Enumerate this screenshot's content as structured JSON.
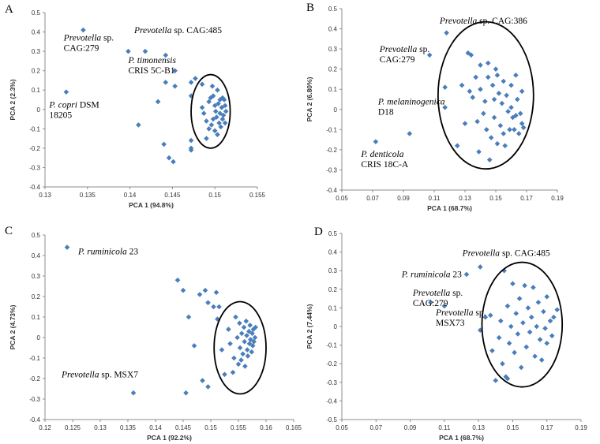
{
  "chart_data": [
    {
      "type": "scatter",
      "panel": "A",
      "xlabel": "PCA 1 (94.8%)",
      "ylabel": "PCA 2 (2.3%)",
      "xlim": [
        0.13,
        0.155
      ],
      "ylim": [
        -0.4,
        0.5
      ],
      "xticks": [
        0.13,
        0.135,
        0.14,
        0.145,
        0.15,
        0.155
      ],
      "xtick_labels": [
        "0.13",
        "0.135",
        "0.14",
        "0.145",
        "0.15",
        "0.155"
      ],
      "yticks": [
        -0.4,
        -0.3,
        -0.2,
        -0.1,
        0,
        0.1,
        0.2,
        0.3,
        0.4,
        0.5
      ],
      "ytick_labels": [
        "-0.4",
        "-0.3",
        "-0.2",
        "-0.1",
        "0",
        "0.1",
        "0.2",
        "0.3",
        "0.4",
        "0.5"
      ],
      "points": [
        [
          0.1345,
          0.41
        ],
        [
          0.1325,
          0.09
        ],
        [
          0.1398,
          0.3
        ],
        [
          0.1418,
          0.3
        ],
        [
          0.141,
          -0.08
        ],
        [
          0.1442,
          0.28
        ],
        [
          0.1442,
          0.14
        ],
        [
          0.1453,
          0.2
        ],
        [
          0.1453,
          0.12
        ],
        [
          0.1433,
          0.04
        ],
        [
          0.144,
          -0.18
        ],
        [
          0.1446,
          -0.25
        ],
        [
          0.1451,
          -0.27
        ],
        [
          0.1472,
          0.14
        ],
        [
          0.1472,
          0.07
        ],
        [
          0.1472,
          -0.16
        ],
        [
          0.1472,
          -0.2
        ],
        [
          0.1472,
          -0.21
        ],
        [
          0.1477,
          0.16
        ],
        [
          0.1485,
          0.13
        ],
        [
          0.1485,
          0.01
        ],
        [
          0.1487,
          -0.02
        ],
        [
          0.149,
          -0.06
        ],
        [
          0.149,
          -0.15
        ],
        [
          0.1493,
          0.04
        ],
        [
          0.1493,
          -0.1
        ],
        [
          0.1495,
          0.06
        ],
        [
          0.1496,
          -0.08
        ],
        [
          0.1497,
          0.12
        ],
        [
          0.1498,
          0.07
        ],
        [
          0.1498,
          -0.05
        ],
        [
          0.15,
          0.02
        ],
        [
          0.15,
          -0.11
        ],
        [
          0.1501,
          -0.01
        ],
        [
          0.1502,
          -0.04
        ],
        [
          0.1503,
          0.1
        ],
        [
          0.1503,
          -0.13
        ],
        [
          0.1504,
          0.03
        ],
        [
          0.1505,
          -0.07
        ],
        [
          0.1506,
          0.05
        ],
        [
          0.1506,
          -0.02
        ],
        [
          0.1507,
          -0.09
        ],
        [
          0.1508,
          0.01
        ],
        [
          0.1509,
          0.06
        ],
        [
          0.1509,
          -0.05
        ],
        [
          0.151,
          -0.03
        ],
        [
          0.1511,
          0.05
        ],
        [
          0.1512,
          -0.07
        ],
        [
          0.1512,
          0.02
        ],
        [
          0.1513,
          -0.01
        ]
      ],
      "ellipse": {
        "cx": 0.1495,
        "cy": -0.01,
        "rx": 0.0023,
        "ry": 0.19
      },
      "annotations": [
        {
          "lines": [
            [
              {
                "t": "Prevotella",
                "i": true
              },
              {
                "t": " sp.",
                "i": false
              }
            ],
            [
              {
                "t": "CAG:279",
                "i": false
              }
            ]
          ],
          "x": 0.1322,
          "y": 0.355
        },
        {
          "lines": [
            [
              {
                "t": "Prevotella",
                "i": true
              },
              {
                "t": " sp. CAG:485",
                "i": false
              }
            ]
          ],
          "x": 0.1405,
          "y": 0.395
        },
        {
          "lines": [
            [
              {
                "t": "P. timonensis",
                "i": true
              }
            ],
            [
              {
                "t": "CRIS 5C-B1",
                "i": false
              }
            ]
          ],
          "x": 0.1398,
          "y": 0.24
        },
        {
          "lines": [
            [
              {
                "t": "P. copri",
                "i": true
              },
              {
                "t": " DSM",
                "i": false
              }
            ],
            [
              {
                "t": "18205",
                "i": false
              }
            ]
          ],
          "x": 0.1305,
          "y": 0.01
        }
      ]
    },
    {
      "type": "scatter",
      "panel": "B",
      "xlabel": "PCA 1 (68.7%)",
      "ylabel": "PCA 2 (6.80%)",
      "xlim": [
        0.05,
        0.19
      ],
      "ylim": [
        -0.4,
        0.5
      ],
      "xticks": [
        0.05,
        0.07,
        0.09,
        0.11,
        0.13,
        0.15,
        0.17,
        0.19
      ],
      "xtick_labels": [
        "0.05",
        "0.07",
        "0.09",
        "0.11",
        "0.13",
        "0.15",
        "0.17",
        "0.19"
      ],
      "yticks": [
        -0.4,
        -0.3,
        -0.2,
        -0.1,
        0,
        0.1,
        0.2,
        0.3,
        0.4,
        0.5
      ],
      "ytick_labels": [
        "-0.4",
        "-0.3",
        "-0.2",
        "-0.1",
        "0",
        "0.1",
        "0.2",
        "0.3",
        "0.4",
        "0.5"
      ],
      "points": [
        [
          0.118,
          0.38
        ],
        [
          0.107,
          0.27
        ],
        [
          0.072,
          -0.16
        ],
        [
          0.094,
          -0.12
        ],
        [
          0.117,
          0.11
        ],
        [
          0.117,
          0.01
        ],
        [
          0.125,
          -0.18
        ],
        [
          0.128,
          0.12
        ],
        [
          0.132,
          0.28
        ],
        [
          0.134,
          0.27
        ],
        [
          0.133,
          0.09
        ],
        [
          0.135,
          0.06
        ],
        [
          0.137,
          0.16
        ],
        [
          0.138,
          -0.06
        ],
        [
          0.14,
          0.22
        ],
        [
          0.14,
          0.1
        ],
        [
          0.142,
          -0.02
        ],
        [
          0.143,
          0.04
        ],
        [
          0.144,
          -0.1
        ],
        [
          0.145,
          0.23
        ],
        [
          0.145,
          0.16
        ],
        [
          0.146,
          -0.25
        ],
        [
          0.147,
          -0.14
        ],
        [
          0.148,
          0.12
        ],
        [
          0.149,
          0.05
        ],
        [
          0.149,
          -0.04
        ],
        [
          0.15,
          0.2
        ],
        [
          0.151,
          0.17
        ],
        [
          0.151,
          -0.17
        ],
        [
          0.152,
          0.08
        ],
        [
          0.153,
          -0.08
        ],
        [
          0.154,
          0.03
        ],
        [
          0.155,
          0.14
        ],
        [
          0.155,
          -0.12
        ],
        [
          0.157,
          0.07
        ],
        [
          0.158,
          -0.01
        ],
        [
          0.159,
          -0.1
        ],
        [
          0.16,
          0.12
        ],
        [
          0.16,
          0.01
        ],
        [
          0.161,
          -0.04
        ],
        [
          0.162,
          -0.1
        ],
        [
          0.163,
          0.17
        ],
        [
          0.163,
          -0.03
        ],
        [
          0.164,
          0.05
        ],
        [
          0.165,
          -0.12
        ],
        [
          0.166,
          -0.02
        ],
        [
          0.167,
          -0.07
        ],
        [
          0.167,
          0.09
        ],
        [
          0.168,
          -0.09
        ],
        [
          0.13,
          -0.07
        ],
        [
          0.139,
          -0.21
        ],
        [
          0.156,
          -0.18
        ]
      ],
      "ellipse": {
        "cx": 0.1435,
        "cy": 0.07,
        "rx": 0.031,
        "ry": 0.365
      },
      "annotations": [
        {
          "lines": [
            [
              {
                "t": "Prevotella",
                "i": true
              },
              {
                "t": " sp. CAG:386",
                "i": false
              }
            ]
          ],
          "x": 0.1135,
          "y": 0.425
        },
        {
          "lines": [
            [
              {
                "t": "Prevotella",
                "i": true
              },
              {
                "t": " sp.",
                "i": false
              }
            ],
            [
              {
                "t": "CAG:279",
                "i": false
              }
            ]
          ],
          "x": 0.0745,
          "y": 0.285
        },
        {
          "lines": [
            [
              {
                "t": "P. melaninogenica",
                "i": true
              }
            ],
            [
              {
                "t": "D18",
                "i": false
              }
            ]
          ],
          "x": 0.0735,
          "y": 0.025
        },
        {
          "lines": [
            [
              {
                "t": "P. denticola",
                "i": true
              }
            ],
            [
              {
                "t": "CRIS 18C-A",
                "i": false
              }
            ]
          ],
          "x": 0.0625,
          "y": -0.235
        }
      ]
    },
    {
      "type": "scatter",
      "panel": "C",
      "xlabel": "PCA 1 (92.2%)",
      "ylabel": "PCA 2 (4.73%)",
      "xlim": [
        0.12,
        0.165
      ],
      "ylim": [
        -0.4,
        0.5
      ],
      "xticks": [
        0.12,
        0.125,
        0.13,
        0.135,
        0.14,
        0.145,
        0.15,
        0.155,
        0.16,
        0.165
      ],
      "xtick_labels": [
        "0.12",
        "0.125",
        "0.13",
        "0.135",
        "0.14",
        "0.145",
        "0.15",
        "0.155",
        "0.16",
        "0.165"
      ],
      "yticks": [
        -0.4,
        -0.3,
        -0.2,
        -0.1,
        0,
        0.1,
        0.2,
        0.3,
        0.4,
        0.5
      ],
      "ytick_labels": [
        "-0.4",
        "-0.3",
        "-0.2",
        "-0.1",
        "0",
        "0.1",
        "0.2",
        "0.3",
        "0.4",
        "0.5"
      ],
      "points": [
        [
          0.124,
          0.44
        ],
        [
          0.136,
          -0.27
        ],
        [
          0.144,
          0.28
        ],
        [
          0.145,
          0.23
        ],
        [
          0.146,
          0.1
        ],
        [
          0.147,
          -0.04
        ],
        [
          0.1455,
          -0.27
        ],
        [
          0.148,
          0.21
        ],
        [
          0.149,
          0.23
        ],
        [
          0.1495,
          0.17
        ],
        [
          0.1485,
          -0.21
        ],
        [
          0.1495,
          -0.24
        ],
        [
          0.1505,
          0.15
        ],
        [
          0.151,
          0.22
        ],
        [
          0.1515,
          0.15
        ],
        [
          0.1512,
          0.09
        ],
        [
          0.152,
          -0.06
        ],
        [
          0.1525,
          -0.18
        ],
        [
          0.1532,
          0.04
        ],
        [
          0.1535,
          -0.03
        ],
        [
          0.154,
          -0.17
        ],
        [
          0.1542,
          -0.1
        ],
        [
          0.1545,
          0.1
        ],
        [
          0.1548,
          0.0
        ],
        [
          0.155,
          -0.13
        ],
        [
          0.1552,
          0.07
        ],
        [
          0.1553,
          -0.05
        ],
        [
          0.1555,
          -0.11
        ],
        [
          0.1556,
          0.02
        ],
        [
          0.1558,
          -0.08
        ],
        [
          0.156,
          0.05
        ],
        [
          0.1561,
          -0.02
        ],
        [
          0.1562,
          -0.14
        ],
        [
          0.1564,
          0.08
        ],
        [
          0.1565,
          0.01
        ],
        [
          0.1566,
          -0.06
        ],
        [
          0.1567,
          -0.09
        ],
        [
          0.1569,
          0.03
        ],
        [
          0.157,
          -0.03
        ],
        [
          0.1571,
          0.06
        ],
        [
          0.1572,
          -0.01
        ],
        [
          0.1574,
          -0.07
        ],
        [
          0.1575,
          0.02
        ],
        [
          0.1576,
          -0.04
        ],
        [
          0.1577,
          0.04
        ],
        [
          0.1578,
          -0.02
        ],
        [
          0.158,
          0.0
        ],
        [
          0.1581,
          0.05
        ]
      ],
      "ellipse": {
        "cx": 0.1553,
        "cy": -0.05,
        "rx": 0.0047,
        "ry": 0.225
      },
      "annotations": [
        {
          "lines": [
            [
              {
                "t": "P. ruminicola",
                "i": true
              },
              {
                "t": " 23",
                "i": false
              }
            ]
          ],
          "x": 0.126,
          "y": 0.405
        },
        {
          "lines": [
            [
              {
                "t": "Prevotella",
                "i": true
              },
              {
                "t": " sp. MSX7",
                "i": false
              }
            ]
          ],
          "x": 0.123,
          "y": -0.195
        }
      ]
    },
    {
      "type": "scatter",
      "panel": "D",
      "xlabel": "PCA 1 (68.7%)",
      "ylabel": "PCA 2 (7.44%)",
      "xlim": [
        0.05,
        0.19
      ],
      "ylim": [
        -0.5,
        0.5
      ],
      "xticks": [
        0.05,
        0.07,
        0.09,
        0.11,
        0.13,
        0.15,
        0.17,
        0.19
      ],
      "xtick_labels": [
        "0.05",
        "0.07",
        "0.09",
        "0.11",
        "0.13",
        "0.15",
        "0.17",
        "0.19"
      ],
      "yticks": [
        -0.5,
        -0.4,
        -0.3,
        -0.2,
        -0.1,
        0,
        0.1,
        0.2,
        0.3,
        0.4,
        0.5
      ],
      "ytick_labels": [
        "-0.5",
        "-0.4",
        "-0.3",
        "-0.2",
        "-0.1",
        "0",
        "0.1",
        "0.2",
        "0.3",
        "0.4",
        "0.5"
      ],
      "points": [
        [
          0.131,
          0.32
        ],
        [
          0.123,
          0.28
        ],
        [
          0.102,
          0.13
        ],
        [
          0.11,
          0.11
        ],
        [
          0.131,
          -0.02
        ],
        [
          0.134,
          0.05
        ],
        [
          0.137,
          0.06
        ],
        [
          0.138,
          -0.13
        ],
        [
          0.14,
          -0.29
        ],
        [
          0.142,
          -0.06
        ],
        [
          0.143,
          0.03
        ],
        [
          0.144,
          -0.2
        ],
        [
          0.145,
          0.3
        ],
        [
          0.146,
          -0.27
        ],
        [
          0.147,
          -0.28
        ],
        [
          0.147,
          0.11
        ],
        [
          0.148,
          -0.09
        ],
        [
          0.149,
          0.0
        ],
        [
          0.15,
          0.23
        ],
        [
          0.151,
          -0.14
        ],
        [
          0.152,
          0.07
        ],
        [
          0.153,
          -0.04
        ],
        [
          0.154,
          0.15
        ],
        [
          0.155,
          -0.22
        ],
        [
          0.156,
          0.02
        ],
        [
          0.157,
          0.22
        ],
        [
          0.158,
          -0.11
        ],
        [
          0.159,
          0.1
        ],
        [
          0.16,
          -0.03
        ],
        [
          0.161,
          0.05
        ],
        [
          0.162,
          0.21
        ],
        [
          0.163,
          -0.16
        ],
        [
          0.164,
          0.0
        ],
        [
          0.165,
          0.13
        ],
        [
          0.166,
          -0.07
        ],
        [
          0.167,
          -0.18
        ],
        [
          0.168,
          0.08
        ],
        [
          0.169,
          -0.01
        ],
        [
          0.17,
          0.16
        ],
        [
          0.17,
          -0.09
        ],
        [
          0.172,
          0.03
        ],
        [
          0.174,
          0.05
        ],
        [
          0.176,
          0.09
        ],
        [
          0.173,
          -0.05
        ]
      ],
      "ellipse": {
        "cx": 0.1555,
        "cy": 0.01,
        "rx": 0.0235,
        "ry": 0.335
      },
      "annotations": [
        {
          "lines": [
            [
              {
                "t": "Prevotella",
                "i": true
              },
              {
                "t": " sp. CAG:485",
                "i": false
              }
            ]
          ],
          "x": 0.1205,
          "y": 0.38
        },
        {
          "lines": [
            [
              {
                "t": "P. ruminicola",
                "i": true
              },
              {
                "t": " 23",
                "i": false
              }
            ]
          ],
          "x": 0.085,
          "y": 0.265
        },
        {
          "lines": [
            [
              {
                "t": "Prevotella",
                "i": true
              },
              {
                "t": " sp.",
                "i": false
              }
            ],
            [
              {
                "t": "CAG:279",
                "i": false
              }
            ]
          ],
          "x": 0.0915,
          "y": 0.165
        },
        {
          "lines": [
            [
              {
                "t": "Prevotella",
                "i": true
              },
              {
                "t": " sp.",
                "i": false
              }
            ],
            [
              {
                "t": "MSX73",
                "i": false
              }
            ]
          ],
          "x": 0.105,
          "y": 0.06
        }
      ]
    }
  ]
}
